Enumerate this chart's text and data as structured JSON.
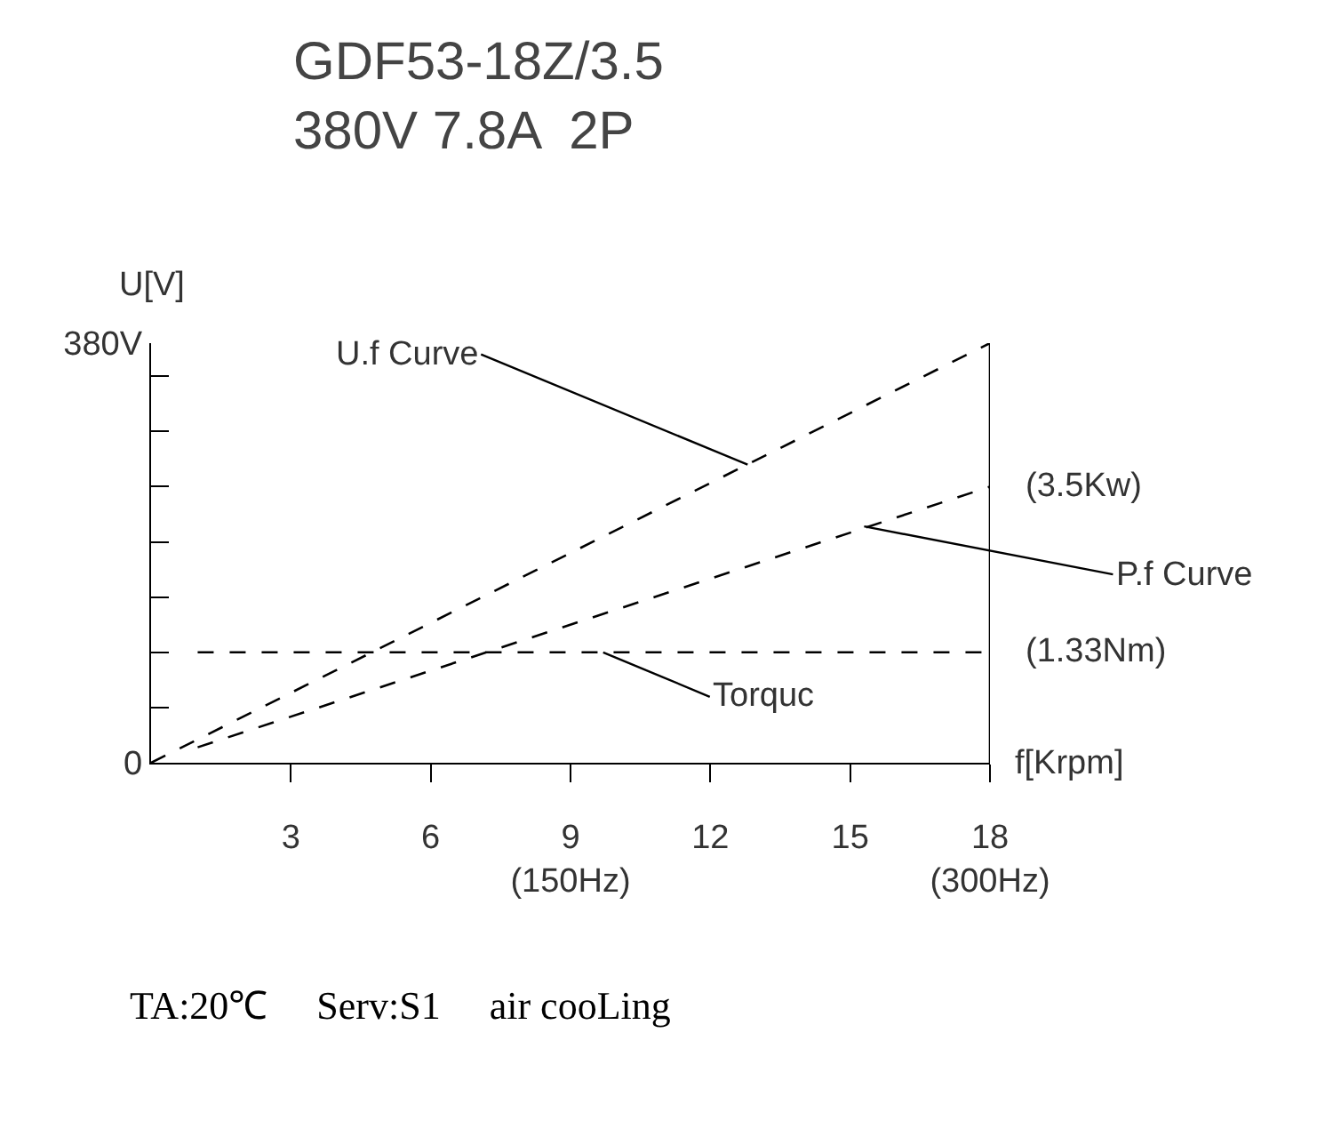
{
  "chart_data": {
    "type": "line",
    "title": "GDF53-18Z/3.5\n380V 7.8A  2P",
    "xlabel": "f[Krpm]",
    "ylabel": "U[V]",
    "series": [
      {
        "x": [
          0,
          18
        ],
        "values": [
          0,
          380
        ],
        "color": "#000000"
      },
      {
        "x": [
          1,
          18
        ],
        "values": [
          14,
          250
        ],
        "color": "#000000"
      },
      {
        "x": [
          1,
          18
        ],
        "values": [
          100,
          100
        ],
        "color": "#000000"
      }
    ],
    "xlim": [
      0,
      18
    ],
    "xticks": [
      3,
      6,
      {
        "value": 9,
        "label": "9\n(150Hz)"
      },
      12,
      15,
      {
        "value": 18,
        "label": "18\n(300Hz)"
      }
    ],
    "ylim": [
      0,
      380
    ],
    "yticks": [
      0,
      {
        "value": 50,
        "label": null
      },
      {
        "value": 100,
        "label": null
      },
      {
        "value": 150,
        "label": null
      },
      {
        "value": 200,
        "label": null
      },
      {
        "value": 250,
        "label": null
      },
      {
        "value": 300,
        "label": null
      },
      {
        "value": 350,
        "label": null
      },
      {
        "value": 380,
        "label": "380V"
      }
    ],
    "ref_lines": [
      {
        "axis": "x",
        "value": 18,
        "color": "#000000",
        "line_style": "solid"
      }
    ],
    "annotations": [
      {
        "text": "U.f Curve",
        "x": 12.8,
        "y": 270
      },
      {
        "text": "P.f Curve",
        "x": 15.3,
        "y": 214
      },
      {
        "text": "Torquc",
        "x": 9.7,
        "y": 100
      },
      {
        "text": "(3.5Kw)",
        "x": 18,
        "y": 250
      },
      {
        "text": "(1.33Nm)",
        "x": 18,
        "y": 100
      },
      "TA:20℃     Serv:S1     air cooLing"
    ],
    "marker": "none",
    "line_style": "dashed"
  }
}
